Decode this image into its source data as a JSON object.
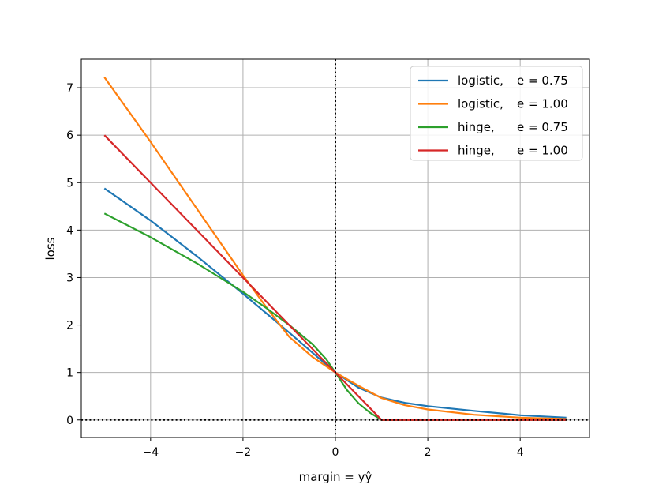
{
  "chart_data": {
    "type": "line",
    "title": "",
    "xlabel": "margin = yŷ",
    "ylabel": "loss",
    "xlim": [
      -5.5,
      5.5
    ],
    "ylim": [
      -0.37,
      7.6
    ],
    "xticks": [
      -4,
      -2,
      0,
      2,
      4
    ],
    "xtick_labels": [
      "−4",
      "−2",
      "0",
      "2",
      "4"
    ],
    "yticks": [
      0,
      1,
      2,
      3,
      4,
      5,
      6,
      7
    ],
    "ytick_labels": [
      "0",
      "1",
      "2",
      "3",
      "4",
      "5",
      "6",
      "7"
    ],
    "grid": true,
    "legend_position": "top-right",
    "reference_lines": [
      {
        "orientation": "vertical",
        "value": 0,
        "style": "dotted",
        "color": "#000000"
      },
      {
        "orientation": "horizontal",
        "value": 0,
        "style": "dotted",
        "color": "#000000"
      }
    ],
    "series": [
      {
        "name": "logistic,",
        "param": "e = 0.75",
        "color": "#1f77b4",
        "x": [
          -5,
          -4,
          -3,
          -2,
          -1.5,
          -1,
          -0.5,
          0,
          0.5,
          1,
          1.5,
          2,
          3,
          4,
          5
        ],
        "y": [
          4.88,
          4.2,
          3.45,
          2.66,
          2.25,
          1.84,
          1.42,
          1.0,
          0.68,
          0.47,
          0.36,
          0.29,
          0.19,
          0.1,
          0.05
        ]
      },
      {
        "name": "logistic,",
        "param": "e = 1.00",
        "color": "#ff7f0e",
        "x": [
          -5,
          -4,
          -3,
          -2,
          -1.5,
          -1,
          -0.5,
          0,
          0.5,
          1,
          1.5,
          2,
          3,
          4,
          5
        ],
        "y": [
          7.22,
          5.86,
          4.45,
          3.05,
          2.38,
          1.75,
          1.33,
          1.0,
          0.72,
          0.46,
          0.31,
          0.22,
          0.11,
          0.05,
          0.02
        ]
      },
      {
        "name": "hinge,",
        "param": "e = 0.75",
        "color": "#2ca02c",
        "x": [
          -5,
          -4,
          -3,
          -2,
          -1.5,
          -1,
          -0.5,
          -0.2,
          0,
          0.25,
          0.5,
          0.75,
          1,
          2,
          3,
          4,
          5
        ],
        "y": [
          4.35,
          3.85,
          3.3,
          2.7,
          2.36,
          2.0,
          1.6,
          1.28,
          1.0,
          0.63,
          0.35,
          0.15,
          0.0,
          0.0,
          0.0,
          0.0,
          0.0
        ]
      },
      {
        "name": "hinge,",
        "param": "e = 1.00",
        "color": "#d62728",
        "x": [
          -5,
          1,
          2,
          3,
          4,
          5
        ],
        "y": [
          6.0,
          0.0,
          0.0,
          0.0,
          0.0,
          0.0
        ]
      }
    ]
  }
}
